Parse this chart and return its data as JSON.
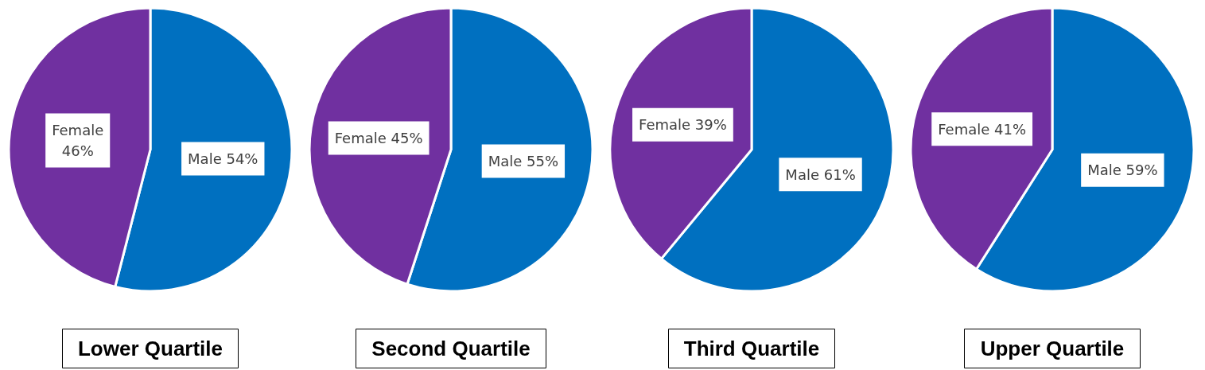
{
  "chart_data": [
    {
      "type": "pie",
      "title": "Lower Quartile",
      "categories": [
        "Male",
        "Female"
      ],
      "values": [
        54,
        46
      ],
      "colors": [
        "#0070c0",
        "#7030a0"
      ],
      "value_labels": [
        "54%",
        "46%"
      ]
    },
    {
      "type": "pie",
      "title": "Second Quartile",
      "categories": [
        "Male",
        "Female"
      ],
      "values": [
        55,
        45
      ],
      "colors": [
        "#0070c0",
        "#7030a0"
      ],
      "value_labels": [
        "55%",
        "45%"
      ]
    },
    {
      "type": "pie",
      "title": "Third Quartile",
      "categories": [
        "Male",
        "Female"
      ],
      "values": [
        61,
        39
      ],
      "colors": [
        "#0070c0",
        "#7030a0"
      ],
      "value_labels": [
        "61%",
        "39%"
      ]
    },
    {
      "type": "pie",
      "title": "Upper Quartile",
      "categories": [
        "Male",
        "Female"
      ],
      "values": [
        59,
        41
      ],
      "colors": [
        "#0070c0",
        "#7030a0"
      ],
      "value_labels": [
        "59%",
        "41%"
      ]
    }
  ]
}
